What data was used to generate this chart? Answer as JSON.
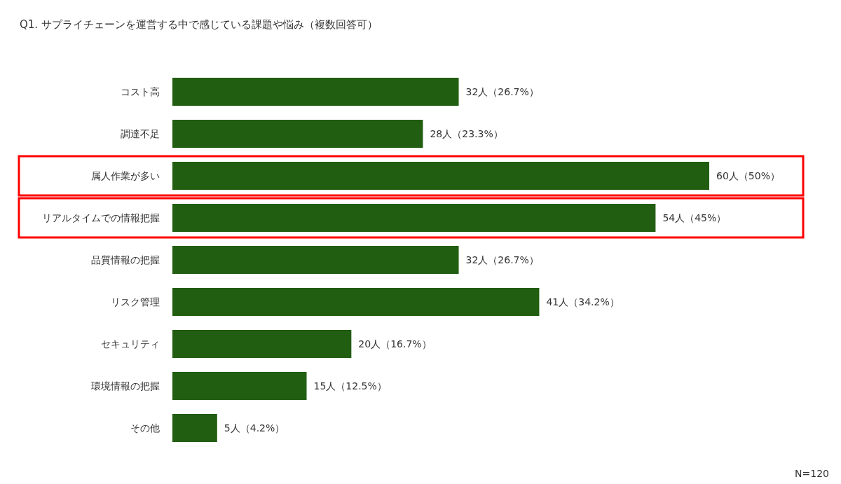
{
  "chart_data": {
    "type": "bar",
    "orientation": "horizontal",
    "title": "Q1. サプライチェーンを運営する中で感じている課題や悩み（複数回答可）",
    "categories": [
      "コスト高",
      "調達不足",
      "属人作業が多い",
      "リアルタイムでの情報把握",
      "品質情報の把握",
      "リスク管理",
      "セキュリティ",
      "環境情報の把握",
      "その他"
    ],
    "values": [
      32,
      28,
      60,
      54,
      32,
      41,
      20,
      15,
      5
    ],
    "value_labels": [
      "32人（26.7%）",
      "28人（23.3%）",
      "60人（50%）",
      "54人（45%）",
      "32人（26.7%）",
      "41人（34.2%）",
      "20人（16.7%）",
      "15人（12.5%）",
      "5人（4.2%）"
    ],
    "color": "#215e12",
    "annotations": [
      "N=120"
    ]
  }
}
